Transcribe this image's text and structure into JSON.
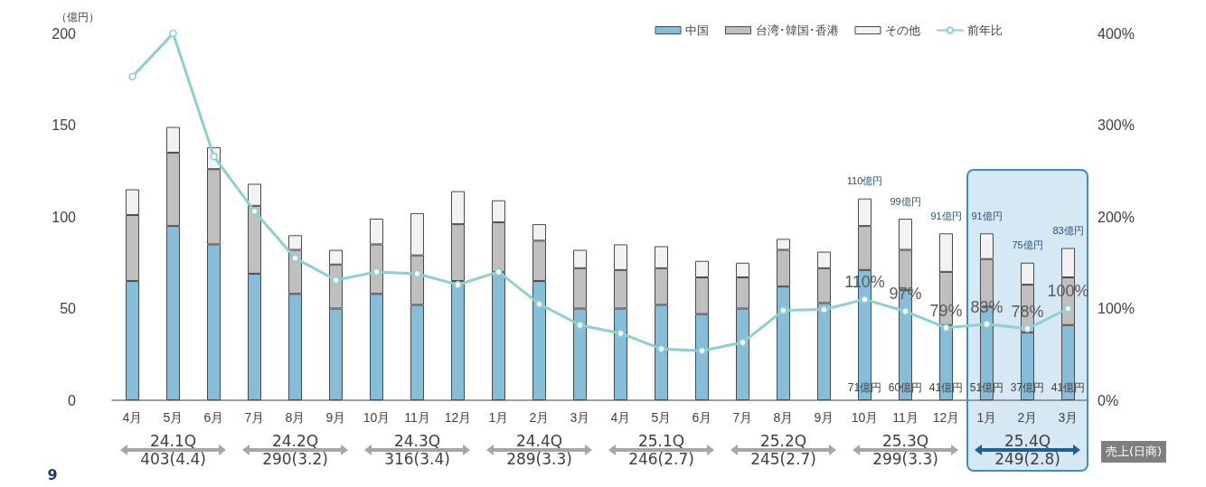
{
  "chart_data": {
    "type": "bar",
    "stacked": true,
    "ylabel": "（億円）",
    "categories": [
      "4月",
      "5月",
      "6月",
      "7月",
      "8月",
      "9月",
      "10月",
      "11月",
      "12月",
      "1月",
      "2月",
      "3月",
      "4月",
      "5月",
      "6月",
      "7月",
      "8月",
      "9月",
      "10月",
      "11月",
      "12月",
      "1月",
      "2月",
      "3月"
    ],
    "series": [
      {
        "name": "中国",
        "color": "#86bdd9",
        "values": [
          65,
          95,
          85,
          69,
          58,
          50,
          58,
          52,
          65,
          70,
          65,
          50,
          50,
          52,
          47,
          50,
          62,
          53,
          71,
          60,
          41,
          51,
          37,
          41
        ],
        "value_labels": [
          null,
          null,
          null,
          null,
          null,
          null,
          null,
          null,
          null,
          null,
          null,
          null,
          null,
          null,
          null,
          null,
          null,
          null,
          "71億円",
          "60億円",
          "41億円",
          "51億円",
          "37億円",
          "41億円"
        ]
      },
      {
        "name": "台湾･韓国･香港",
        "color": "#bfbfbf",
        "values": [
          36,
          40,
          41,
          37,
          24,
          24,
          27,
          27,
          31,
          27,
          22,
          22,
          21,
          20,
          20,
          17,
          20,
          19,
          24,
          22,
          29,
          26,
          26,
          26
        ]
      },
      {
        "name": "その他",
        "color": "#f2f2f2",
        "values": [
          14,
          14,
          12,
          12,
          8,
          8,
          14,
          23,
          18,
          12,
          9,
          10,
          14,
          12,
          9,
          8,
          6,
          9,
          15,
          17,
          21,
          14,
          12,
          16
        ]
      },
      {
        "name": "前年比",
        "type": "line",
        "axis": "y2",
        "color": "#8ecfcf",
        "marker": "circle",
        "line_style": "solid",
        "values": [
          353,
          400,
          266,
          206,
          155,
          131,
          140,
          138,
          126,
          140,
          105,
          82,
          73,
          56,
          54,
          63,
          98,
          99,
          110,
          97,
          79,
          83,
          78,
          100
        ],
        "value_labels": [
          null,
          null,
          null,
          null,
          null,
          null,
          null,
          null,
          null,
          null,
          null,
          null,
          null,
          null,
          null,
          null,
          null,
          null,
          "110%",
          "97%",
          "79%",
          "83%",
          "78%",
          "100%"
        ]
      }
    ],
    "totals": [
      null,
      null,
      null,
      null,
      null,
      null,
      null,
      null,
      null,
      null,
      null,
      null,
      null,
      null,
      null,
      null,
      null,
      null,
      "110億円",
      "99億円",
      "91億円",
      "91億円",
      "75億円",
      "83億円"
    ],
    "ylim": [
      0,
      200
    ],
    "yticks": [
      0,
      50,
      100,
      150,
      200
    ],
    "y2lim": [
      0,
      400
    ],
    "y2ticks": [
      {
        "value": 0,
        "label": "0%"
      },
      {
        "value": 100,
        "label": "100%"
      },
      {
        "value": 200,
        "label": "200%"
      },
      {
        "value": 300,
        "label": "300%"
      },
      {
        "value": 400,
        "label": "400%"
      }
    ],
    "grid": false,
    "legend": "top right",
    "annotations": [
      "24.1Q",
      "403(4.4)",
      "24.2Q",
      "290(3.2)",
      "24.3Q",
      "316(3.4)",
      "24.4Q",
      "289(3.3)",
      "25.1Q",
      "246(2.7)",
      "25.2Q",
      "245(2.7)",
      "25.3Q",
      "299(3.3)",
      "25.4Q",
      "249(2.8)",
      "売上(日商)",
      "9"
    ]
  }
}
